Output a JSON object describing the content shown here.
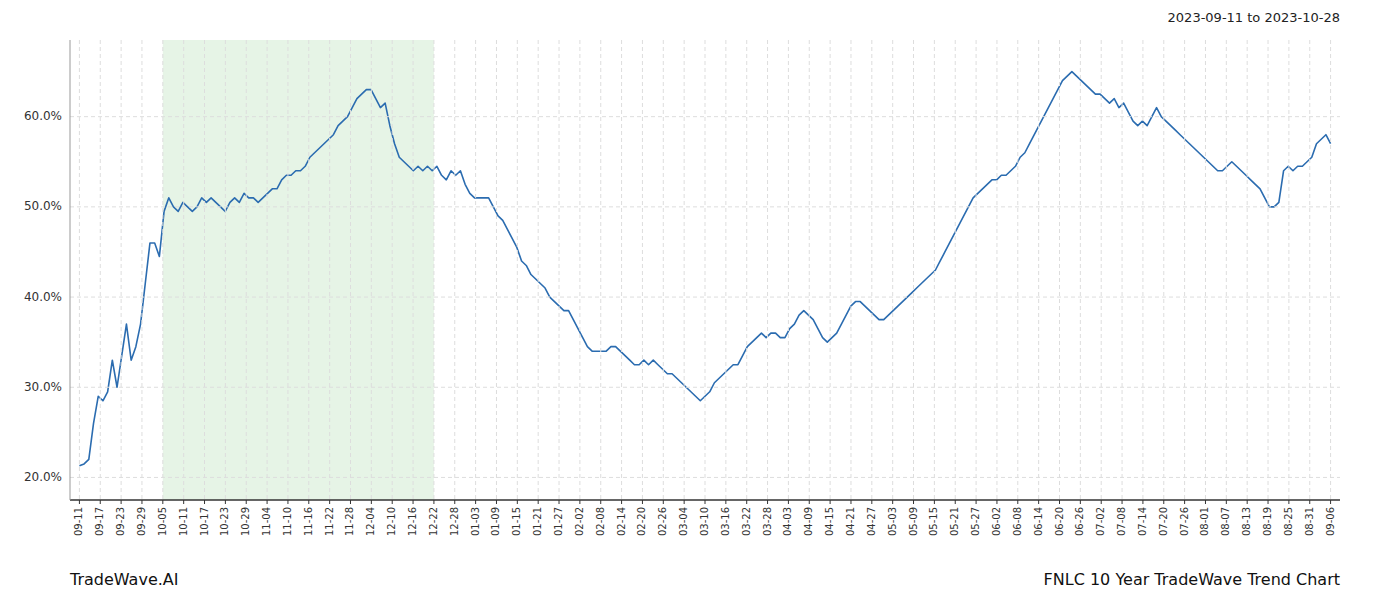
{
  "chart_data": {
    "type": "line",
    "title": "FNLC 10 Year TradeWave Trend Chart",
    "subtitle": "2023-09-11 to 2023-10-28",
    "annotations": [
      "TradeWave.AI"
    ],
    "color": "#2b6cb0",
    "grid": true,
    "shade": {
      "x": [
        17.733333333333334,
        75.36666666666667
      ],
      "color": "#c8e6c8"
    },
    "ylim": [
      0.175,
      0.685
    ],
    "yticks": [
      {
        "value": 0.2,
        "label": "20.0%"
      },
      {
        "value": 0.3,
        "label": "30.0%"
      },
      {
        "value": 0.4,
        "label": "40.0%"
      },
      {
        "value": 0.5,
        "label": "50.0%"
      },
      {
        "value": 0.6,
        "label": "60.0%"
      }
    ],
    "xlim": [
      -2,
      268
    ],
    "xticks": [
      {
        "value": 0,
        "label": "09-11"
      },
      {
        "value": 4.433333333333334,
        "label": "09-17"
      },
      {
        "value": 8.866666666666667,
        "label": "09-23"
      },
      {
        "value": 13.3,
        "label": "09-29"
      },
      {
        "value": 17.733333333333334,
        "label": "10-05"
      },
      {
        "value": 22.166666666666668,
        "label": "10-11"
      },
      {
        "value": 26.6,
        "label": "10-17"
      },
      {
        "value": 31.033333333333335,
        "label": "10-23"
      },
      {
        "value": 35.46666666666667,
        "label": "10-29"
      },
      {
        "value": 39.9,
        "label": "11-04"
      },
      {
        "value": 44.333333333333336,
        "label": "11-10"
      },
      {
        "value": 48.766666666666666,
        "label": "11-16"
      },
      {
        "value": 53.2,
        "label": "11-22"
      },
      {
        "value": 57.63333333333333,
        "label": "11-28"
      },
      {
        "value": 62.06666666666667,
        "label": "12-04"
      },
      {
        "value": 66.5,
        "label": "12-10"
      },
      {
        "value": 70.93333333333334,
        "label": "12-16"
      },
      {
        "value": 75.36666666666667,
        "label": "12-22"
      },
      {
        "value": 79.8,
        "label": "12-28"
      },
      {
        "value": 84.23333333333333,
        "label": "01-03"
      },
      {
        "value": 88.66666666666667,
        "label": "01-09"
      },
      {
        "value": 93.1,
        "label": "01-15"
      },
      {
        "value": 97.53333333333333,
        "label": "01-21"
      },
      {
        "value": 101.96666666666667,
        "label": "01-27"
      },
      {
        "value": 106.4,
        "label": "02-02"
      },
      {
        "value": 110.83333333333333,
        "label": "02-08"
      },
      {
        "value": 115.26666666666667,
        "label": "02-14"
      },
      {
        "value": 119.7,
        "label": "02-20"
      },
      {
        "value": 124.13333333333334,
        "label": "02-26"
      },
      {
        "value": 128.56666666666666,
        "label": "03-04"
      },
      {
        "value": 133,
        "label": "03-10"
      },
      {
        "value": 137.43333333333334,
        "label": "03-16"
      },
      {
        "value": 141.86666666666667,
        "label": "03-22"
      },
      {
        "value": 146.3,
        "label": "03-28"
      },
      {
        "value": 150.73333333333332,
        "label": "04-03"
      },
      {
        "value": 155.16666666666666,
        "label": "04-09"
      },
      {
        "value": 159.6,
        "label": "04-15"
      },
      {
        "value": 164.03333333333333,
        "label": "04-21"
      },
      {
        "value": 168.46666666666667,
        "label": "04-27"
      },
      {
        "value": 172.9,
        "label": "05-03"
      },
      {
        "value": 177.33333333333334,
        "label": "05-09"
      },
      {
        "value": 181.76666666666668,
        "label": "05-15"
      },
      {
        "value": 186.2,
        "label": "05-21"
      },
      {
        "value": 190.63333333333333,
        "label": "05-27"
      },
      {
        "value": 195.06666666666666,
        "label": "06-02"
      },
      {
        "value": 199.5,
        "label": "06-08"
      },
      {
        "value": 203.93333333333334,
        "label": "06-14"
      },
      {
        "value": 208.36666666666667,
        "label": "06-20"
      },
      {
        "value": 212.8,
        "label": "06-26"
      },
      {
        "value": 217.23333333333332,
        "label": "07-02"
      },
      {
        "value": 221.66666666666666,
        "label": "07-08"
      },
      {
        "value": 226.1,
        "label": "07-14"
      },
      {
        "value": 230.53333333333333,
        "label": "07-20"
      },
      {
        "value": 234.96666666666667,
        "label": "07-26"
      },
      {
        "value": 239.4,
        "label": "08-01"
      },
      {
        "value": 243.83333333333334,
        "label": "08-07"
      },
      {
        "value": 248.26666666666668,
        "label": "08-13"
      },
      {
        "value": 252.7,
        "label": "08-19"
      },
      {
        "value": 257.1333333333333,
        "label": "08-25"
      },
      {
        "value": 261.56666666666666,
        "label": "08-31"
      },
      {
        "value": 266,
        "label": "09-06"
      }
    ],
    "values": [
      0.213,
      0.215,
      0.22,
      0.26,
      0.29,
      0.285,
      0.295,
      0.33,
      0.3,
      0.335,
      0.37,
      0.33,
      0.345,
      0.37,
      0.415,
      0.46,
      0.46,
      0.445,
      0.495,
      0.51,
      0.5,
      0.495,
      0.505,
      0.5,
      0.495,
      0.5,
      0.51,
      0.505,
      0.51,
      0.505,
      0.5,
      0.495,
      0.505,
      0.51,
      0.505,
      0.515,
      0.51,
      0.51,
      0.505,
      0.51,
      0.515,
      0.52,
      0.52,
      0.53,
      0.535,
      0.535,
      0.54,
      0.54,
      0.545,
      0.555,
      0.56,
      0.565,
      0.57,
      0.575,
      0.58,
      0.59,
      0.595,
      0.6,
      0.61,
      0.62,
      0.625,
      0.63,
      0.63,
      0.62,
      0.61,
      0.615,
      0.59,
      0.57,
      0.555,
      0.55,
      0.545,
      0.54,
      0.545,
      0.54,
      0.545,
      0.54,
      0.545,
      0.535,
      0.53,
      0.54,
      0.535,
      0.54,
      0.525,
      0.515,
      0.51,
      0.51,
      0.51,
      0.51,
      0.5,
      0.49,
      0.485,
      0.475,
      0.465,
      0.455,
      0.44,
      0.435,
      0.425,
      0.42,
      0.415,
      0.41,
      0.4,
      0.395,
      0.39,
      0.385,
      0.385,
      0.375,
      0.365,
      0.355,
      0.345,
      0.34,
      0.34,
      0.34,
      0.34,
      0.345,
      0.345,
      0.34,
      0.335,
      0.33,
      0.325,
      0.325,
      0.33,
      0.325,
      0.33,
      0.325,
      0.32,
      0.315,
      0.315,
      0.31,
      0.305,
      0.3,
      0.295,
      0.29,
      0.285,
      0.29,
      0.295,
      0.305,
      0.31,
      0.315,
      0.32,
      0.325,
      0.325,
      0.335,
      0.345,
      0.35,
      0.355,
      0.36,
      0.355,
      0.36,
      0.36,
      0.355,
      0.355,
      0.365,
      0.37,
      0.38,
      0.385,
      0.38,
      0.375,
      0.365,
      0.355,
      0.35,
      0.355,
      0.36,
      0.37,
      0.38,
      0.39,
      0.395,
      0.395,
      0.39,
      0.385,
      0.38,
      0.375,
      0.375,
      0.38,
      0.385,
      0.39,
      0.395,
      0.4,
      0.405,
      0.41,
      0.415,
      0.42,
      0.425,
      0.43,
      0.44,
      0.45,
      0.46,
      0.47,
      0.48,
      0.49,
      0.5,
      0.51,
      0.515,
      0.52,
      0.525,
      0.53,
      0.53,
      0.535,
      0.535,
      0.54,
      0.545,
      0.555,
      0.56,
      0.57,
      0.58,
      0.59,
      0.6,
      0.61,
      0.62,
      0.63,
      0.64,
      0.645,
      0.65,
      0.645,
      0.64,
      0.635,
      0.63,
      0.625,
      0.625,
      0.62,
      0.615,
      0.62,
      0.61,
      0.615,
      0.605,
      0.595,
      0.59,
      0.595,
      0.59,
      0.6,
      0.61,
      0.6,
      0.595,
      0.59,
      0.585,
      0.58,
      0.575,
      0.57,
      0.565,
      0.56,
      0.555,
      0.55,
      0.545,
      0.54,
      0.54,
      0.545,
      0.55,
      0.545,
      0.54,
      0.535,
      0.53,
      0.525,
      0.52,
      0.51,
      0.5,
      0.5,
      0.505,
      0.54,
      0.545,
      0.54,
      0.545,
      0.545,
      0.55,
      0.555,
      0.57,
      0.575,
      0.58,
      0.57
    ]
  }
}
